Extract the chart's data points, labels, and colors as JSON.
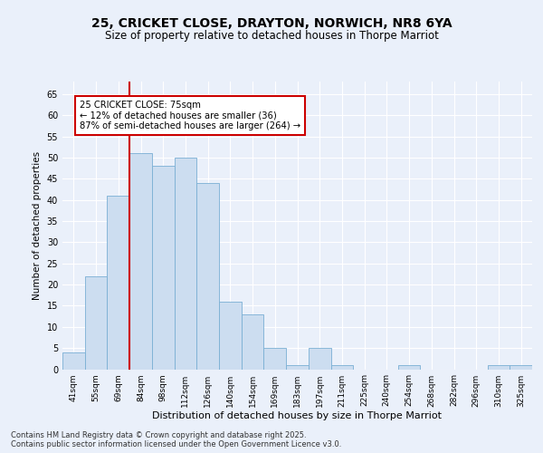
{
  "title_line1": "25, CRICKET CLOSE, DRAYTON, NORWICH, NR8 6YA",
  "title_line2": "Size of property relative to detached houses in Thorpe Marriot",
  "xlabel": "Distribution of detached houses by size in Thorpe Marriot",
  "ylabel": "Number of detached properties",
  "categories": [
    "41sqm",
    "55sqm",
    "69sqm",
    "84sqm",
    "98sqm",
    "112sqm",
    "126sqm",
    "140sqm",
    "154sqm",
    "169sqm",
    "183sqm",
    "197sqm",
    "211sqm",
    "225sqm",
    "240sqm",
    "254sqm",
    "268sqm",
    "282sqm",
    "296sqm",
    "310sqm",
    "325sqm"
  ],
  "values": [
    4,
    22,
    41,
    51,
    48,
    50,
    44,
    16,
    13,
    5,
    1,
    5,
    1,
    0,
    0,
    1,
    0,
    0,
    0,
    1,
    1
  ],
  "bar_color": "#ccddf0",
  "bar_edge_color": "#7aafd4",
  "vline_color": "#cc0000",
  "vline_x_index": 2.5,
  "annotation_text_line1": "25 CRICKET CLOSE: 75sqm",
  "annotation_text_line2": "← 12% of detached houses are smaller (36)",
  "annotation_text_line3": "87% of semi-detached houses are larger (264) →",
  "annotation_box_color": "#ffffff",
  "annotation_box_edge": "#cc0000",
  "ylim": [
    0,
    68
  ],
  "yticks": [
    0,
    5,
    10,
    15,
    20,
    25,
    30,
    35,
    40,
    45,
    50,
    55,
    60,
    65
  ],
  "footer_text": "Contains HM Land Registry data © Crown copyright and database right 2025.\nContains public sector information licensed under the Open Government Licence v3.0.",
  "bg_color": "#eaf0fa",
  "plot_bg_color": "#eaf0fa",
  "grid_color": "#ffffff"
}
